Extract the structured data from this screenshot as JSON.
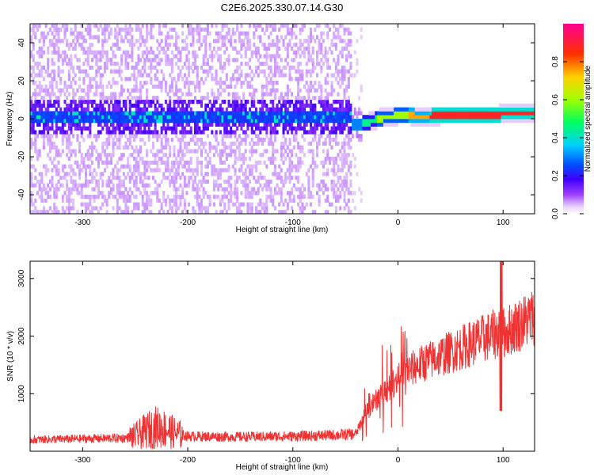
{
  "chart_data": [
    {
      "type": "heatmap",
      "title": "C2E6.2025.330.07.14.G30",
      "xlabel": "Height of straight line (km)",
      "ylabel": "Frequency (Hz)",
      "xlim": [
        -350,
        130
      ],
      "ylim": [
        -50,
        50
      ],
      "xticks": [
        -300,
        -200,
        -100,
        0,
        100
      ],
      "yticks": [
        -40,
        -20,
        0,
        20,
        40
      ],
      "trace_tail": {
        "x": [
          -45,
          -40,
          -35,
          -30,
          -25,
          -20,
          -10,
          0,
          10,
          20,
          40,
          60,
          80,
          95,
          100,
          130
        ],
        "y": [
          -4,
          -4,
          -3,
          -3,
          -2,
          -1,
          0,
          1,
          1,
          0,
          1,
          1,
          1,
          1,
          2,
          2
        ]
      },
      "colorbar": {
        "label": "Normalized spectral amplitude",
        "ticks": [
          "0.0",
          "0.2",
          "0.4",
          "0.6",
          "0.8"
        ],
        "range": [
          0,
          1
        ],
        "colors": [
          "#ffffff",
          "#cc99ff",
          "#6600ff",
          "#0000ff",
          "#00c8ff",
          "#00ff80",
          "#80ff00",
          "#ffff00",
          "#ff8000",
          "#ff0000",
          "#ff00a0"
        ]
      }
    },
    {
      "type": "line",
      "xlabel": "Height of straight line (km)",
      "ylabel": "SNR (10 * v/v)",
      "xlim": [
        -350,
        130
      ],
      "ylim": [
        0,
        3300
      ],
      "xticks": [
        -300,
        -200,
        -100,
        0,
        100
      ],
      "yticks": [
        1000,
        2000,
        3000
      ],
      "color": "#f03232",
      "trend": {
        "x": [
          -350,
          -260,
          -250,
          -240,
          -230,
          -220,
          -210,
          -200,
          -150,
          -100,
          -60,
          -40,
          -35,
          -30,
          -20,
          -10,
          0,
          10,
          20,
          40,
          60,
          80,
          95,
          98,
          100,
          110,
          130
        ],
        "y": [
          200,
          230,
          260,
          350,
          420,
          380,
          300,
          260,
          250,
          260,
          280,
          300,
          500,
          700,
          900,
          1100,
          1250,
          1400,
          1500,
          1650,
          1800,
          1950,
          2050,
          2400,
          2050,
          2150,
          2350
        ]
      }
    }
  ]
}
